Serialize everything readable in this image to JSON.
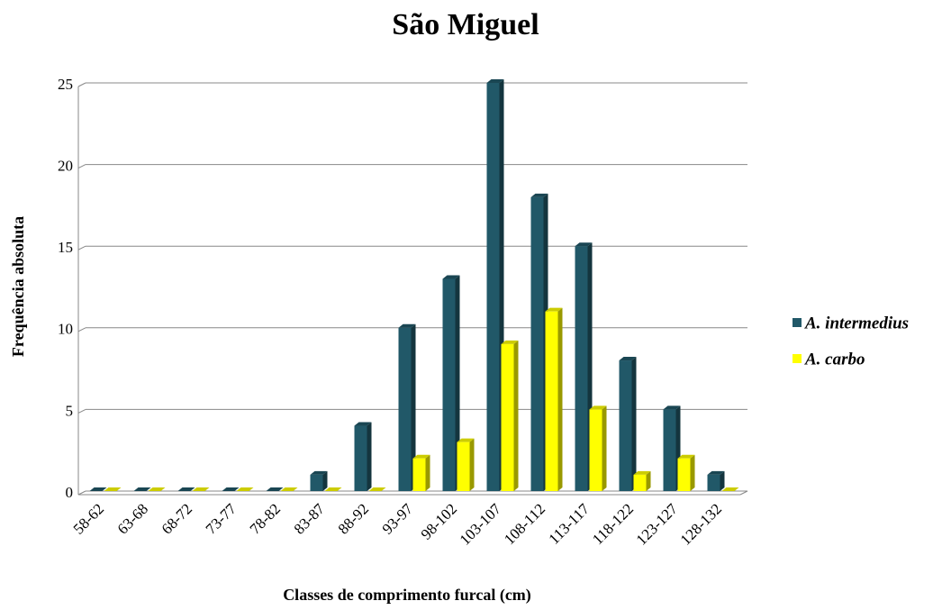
{
  "chart_data": {
    "type": "bar",
    "title": "São Miguel",
    "x_label": "Classes de comprimento furcal (cm)",
    "y_label": "Frequência absoluta",
    "categories": [
      "58-62",
      "63-68",
      "68-72",
      "73-77",
      "78-82",
      "83-87",
      "88-92",
      "93-97",
      "98-102",
      "103-107",
      "108-112",
      "113-117",
      "118-122",
      "123-127",
      "128-132"
    ],
    "series": [
      {
        "name": "A. intermedius",
        "color": "#215868",
        "values": [
          0,
          0,
          0,
          0,
          0,
          1,
          4,
          10,
          13,
          25,
          18,
          15,
          8,
          5,
          1
        ]
      },
      {
        "name": "A. carbo",
        "color": "#ffff00",
        "values": [
          0,
          0,
          0,
          0,
          0,
          0,
          0,
          2,
          3,
          9,
          11,
          5,
          1,
          2,
          0
        ]
      }
    ],
    "ylim": [
      0,
      25
    ],
    "yticks": [
      0,
      5,
      10,
      15,
      20,
      25
    ],
    "grid": true,
    "legend": "right"
  }
}
